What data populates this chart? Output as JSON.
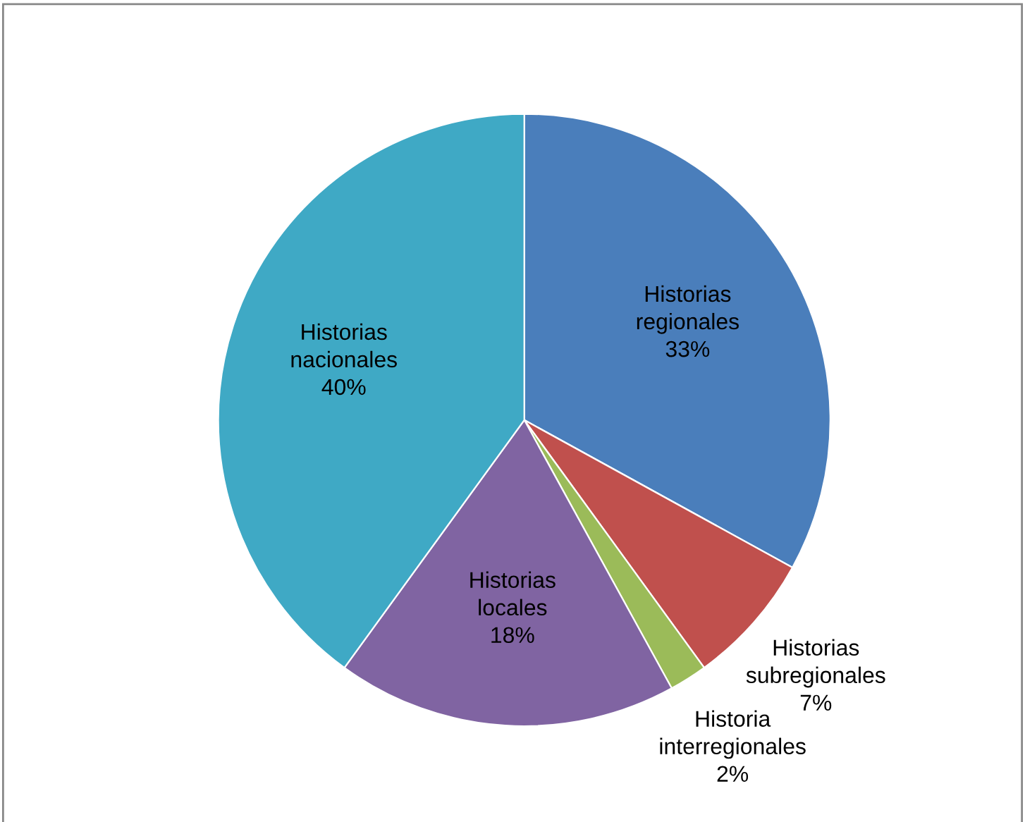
{
  "chart_data": {
    "type": "pie",
    "categories": [
      "Historias regionales",
      "Historias subregionales",
      "Historia interregionales",
      "Historias locales",
      "Historias nacionales"
    ],
    "values": [
      33,
      7,
      2,
      18,
      40
    ],
    "colors": [
      "#4a7ebb",
      "#c0504d",
      "#9bbb59",
      "#8064a2",
      "#3fa9c5"
    ],
    "value_labels": [
      "33%",
      "7%",
      "2%",
      "18%",
      "40%"
    ]
  }
}
